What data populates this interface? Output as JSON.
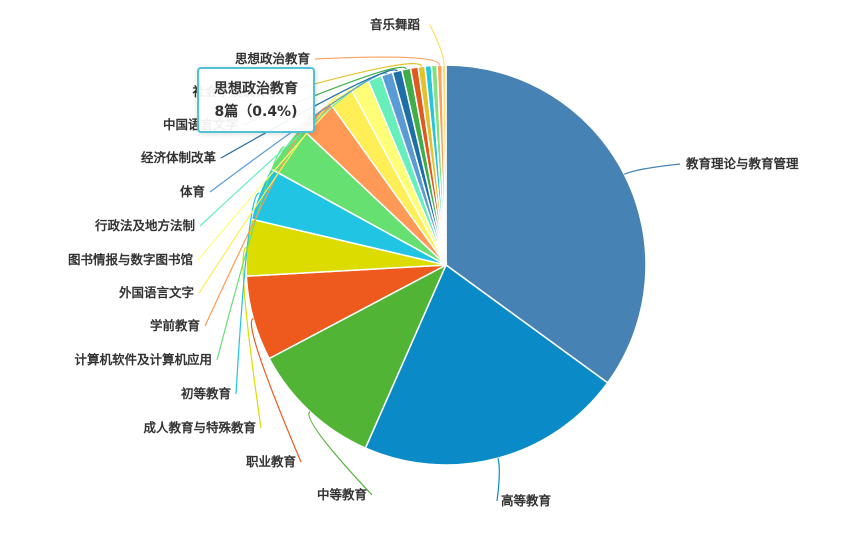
{
  "chart_data": {
    "type": "pie",
    "title": "",
    "unit": "篇",
    "start_angle_deg": 90,
    "slices": [
      {
        "name": "教育理论与教育管理",
        "value": 690,
        "color": "#4682b4"
      },
      {
        "name": "高等教育",
        "value": 425,
        "color": "#0a8bc7"
      },
      {
        "name": "中等教育",
        "value": 210,
        "color": "#52b435"
      },
      {
        "name": "职业教育",
        "value": 135,
        "color": "#ee5a1e"
      },
      {
        "name": "成人教育与特殊教育",
        "value": 90,
        "color": "#dcdc00"
      },
      {
        "name": "初等教育",
        "value": 85,
        "color": "#22c4e3"
      },
      {
        "name": "计算机软件及计算机应用",
        "value": 80,
        "color": "#66e070"
      },
      {
        "name": "学前教育",
        "value": 60,
        "color": "#ff9955"
      },
      {
        "name": "外国语言文字",
        "value": 40,
        "color": "#ffee55"
      },
      {
        "name": "图书情报与数字图书馆",
        "value": 30,
        "color": "#ffff77"
      },
      {
        "name": "行政法及地方法制",
        "value": 22,
        "color": "#66eebb"
      },
      {
        "name": "体育",
        "value": 18,
        "color": "#5b9bd5"
      },
      {
        "name": "经济体制改革",
        "value": 15,
        "color": "#1e6fa6"
      },
      {
        "name": "中国语言文字",
        "value": 14,
        "color": "#3fae4a"
      },
      {
        "name": "",
        "value": 12,
        "color": "#e05a1e"
      },
      {
        "name": "社会学及统计学",
        "value": 11,
        "color": "#e2c22a"
      },
      {
        "name": "",
        "value": 10,
        "color": "#26c6da"
      },
      {
        "name": "",
        "value": 9,
        "color": "#7fe27f"
      },
      {
        "name": "思想政治教育",
        "value": 8,
        "color": "#ffa060"
      },
      {
        "name": "音乐舞蹈",
        "value": 6,
        "color": "#ffdd66"
      }
    ],
    "tooltip": {
      "name": "思想政治教育",
      "value_text": "8篇（0.4%)"
    }
  }
}
